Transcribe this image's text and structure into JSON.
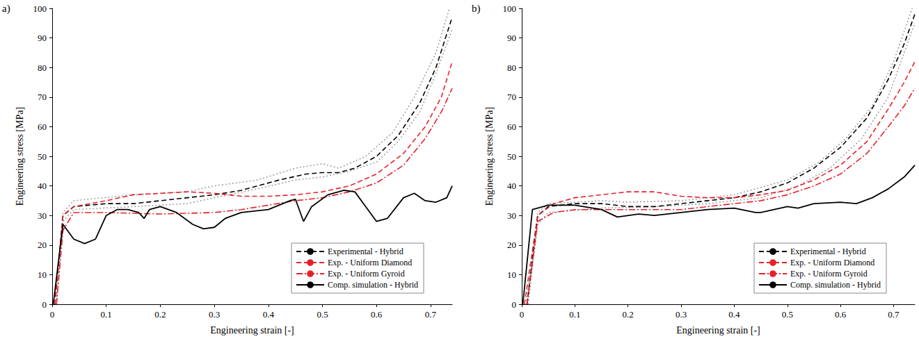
{
  "chart_data": [
    {
      "type": "line",
      "title": "a)",
      "x_label": "Engineering strain [-]",
      "y_label": "Engineering stress [MPa]",
      "xlim": [
        0,
        0.74
      ],
      "xticks": [
        0,
        0.1,
        0.2,
        0.3,
        0.4,
        0.5,
        0.6,
        0.7
      ],
      "ylim": [
        0,
        100
      ],
      "yticks": [
        0,
        10,
        20,
        30,
        40,
        50,
        60,
        70,
        80,
        90,
        100
      ],
      "grid": false,
      "legend": "lower right",
      "series": [
        {
          "color": "#a0a0a0",
          "line_style": "dotted",
          "x": [
            0.005,
            0.02,
            0.04,
            0.15,
            0.25,
            0.3,
            0.38,
            0.45,
            0.5,
            0.53,
            0.58,
            0.63,
            0.67,
            0.71,
            0.735
          ],
          "values": [
            0,
            31,
            35,
            37,
            38,
            40,
            42,
            46,
            47.5,
            46,
            50,
            58,
            70,
            85,
            100
          ]
        },
        {
          "color": "#a0a0a0",
          "line_style": "dotted",
          "x": [
            0.008,
            0.02,
            0.04,
            0.15,
            0.25,
            0.3,
            0.38,
            0.45,
            0.5,
            0.55,
            0.6,
            0.64,
            0.68,
            0.71,
            0.74
          ],
          "values": [
            0,
            28,
            32,
            33,
            34,
            36,
            39,
            42,
            43,
            45,
            48,
            55,
            65,
            78,
            93
          ]
        },
        {
          "name": "Experimental - Hybrid",
          "color": "#000000",
          "line_style": "dashed",
          "x": [
            0.005,
            0.02,
            0.04,
            0.1,
            0.15,
            0.2,
            0.25,
            0.3,
            0.35,
            0.38,
            0.42,
            0.47,
            0.5,
            0.53,
            0.56,
            0.6,
            0.64,
            0.68,
            0.71,
            0.74
          ],
          "values": [
            0,
            30,
            33,
            34,
            34,
            35,
            36,
            37,
            38.5,
            40,
            42,
            44,
            44.5,
            44.5,
            46,
            50,
            57,
            68,
            80,
            97
          ]
        },
        {
          "name": "Exp. - Uniform Diamond",
          "color": "#e8202a",
          "line_style": "dashed",
          "x": [
            0.005,
            0.02,
            0.04,
            0.1,
            0.15,
            0.2,
            0.25,
            0.3,
            0.35,
            0.4,
            0.45,
            0.5,
            0.55,
            0.6,
            0.65,
            0.69,
            0.72,
            0.74
          ],
          "values": [
            0,
            30,
            33,
            35,
            37,
            37.5,
            38,
            37.5,
            36.5,
            36.5,
            37,
            38,
            40,
            44,
            51,
            60,
            70,
            82
          ]
        },
        {
          "name": "Exp. - Uniform Gyroid",
          "color": "#e8202a",
          "line_style": "dashdot",
          "x": [
            0.008,
            0.02,
            0.04,
            0.1,
            0.2,
            0.3,
            0.35,
            0.4,
            0.45,
            0.5,
            0.55,
            0.6,
            0.65,
            0.69,
            0.72,
            0.74
          ],
          "values": [
            0,
            25,
            31,
            31,
            30.5,
            31,
            32,
            33.5,
            35,
            36,
            38,
            41,
            47,
            56,
            65,
            73
          ]
        },
        {
          "name": "Comp. simulation - Hybrid",
          "color": "#000000",
          "line_style": "solid",
          "x": [
            0.002,
            0.02,
            0.04,
            0.06,
            0.08,
            0.1,
            0.12,
            0.14,
            0.16,
            0.17,
            0.18,
            0.2,
            0.23,
            0.26,
            0.28,
            0.3,
            0.32,
            0.35,
            0.4,
            0.44,
            0.45,
            0.465,
            0.48,
            0.51,
            0.54,
            0.56,
            0.58,
            0.6,
            0.62,
            0.65,
            0.67,
            0.69,
            0.71,
            0.73,
            0.74
          ],
          "values": [
            0,
            27,
            22,
            20.5,
            22,
            30,
            32,
            32,
            31,
            29,
            32,
            33,
            31,
            27,
            25.5,
            26,
            29,
            31,
            32,
            35,
            35.5,
            28,
            33,
            37,
            38.5,
            38,
            33,
            28,
            29,
            36,
            37.5,
            35,
            34.5,
            36,
            40
          ]
        }
      ]
    },
    {
      "type": "line",
      "title": "b)",
      "x_label": "Engineering strain [-]",
      "y_label": "Engineering stress [MPa]",
      "xlim": [
        0,
        0.74
      ],
      "xticks": [
        0,
        0.1,
        0.2,
        0.3,
        0.4,
        0.5,
        0.6,
        0.7
      ],
      "ylim": [
        0,
        100
      ],
      "yticks": [
        0,
        10,
        20,
        30,
        40,
        50,
        60,
        70,
        80,
        90,
        100
      ],
      "grid": false,
      "legend": "lower right",
      "series": [
        {
          "color": "#a0a0a0",
          "line_style": "dotted",
          "x": [
            0.008,
            0.03,
            0.05,
            0.15,
            0.2,
            0.3,
            0.4,
            0.5,
            0.56,
            0.61,
            0.66,
            0.7,
            0.735
          ],
          "values": [
            0,
            31,
            34,
            35,
            34.5,
            35,
            37,
            42,
            48,
            56,
            67,
            82,
            100
          ]
        },
        {
          "color": "#a0a0a0",
          "line_style": "dotted",
          "x": [
            0.012,
            0.03,
            0.05,
            0.15,
            0.25,
            0.35,
            0.45,
            0.52,
            0.58,
            0.64,
            0.69,
            0.72,
            0.74
          ],
          "values": [
            0,
            27,
            31,
            32.5,
            33,
            34,
            36,
            40,
            46,
            56,
            70,
            85,
            95
          ]
        },
        {
          "name": "Experimental - Hybrid",
          "color": "#000000",
          "line_style": "dashed",
          "x": [
            0.01,
            0.03,
            0.05,
            0.1,
            0.15,
            0.2,
            0.25,
            0.3,
            0.35,
            0.4,
            0.45,
            0.5,
            0.55,
            0.6,
            0.65,
            0.69,
            0.72,
            0.74
          ],
          "values": [
            0,
            30,
            33,
            34,
            34,
            33,
            33,
            34,
            35,
            36,
            38,
            41,
            46,
            53,
            63,
            76,
            88,
            98
          ]
        },
        {
          "name": "Exp. - Uniform Diamond",
          "color": "#e8202a",
          "line_style": "dashed",
          "x": [
            0.005,
            0.03,
            0.06,
            0.1,
            0.15,
            0.2,
            0.25,
            0.3,
            0.35,
            0.4,
            0.45,
            0.5,
            0.55,
            0.6,
            0.65,
            0.69,
            0.72,
            0.74
          ],
          "values": [
            0,
            30,
            34,
            36,
            37,
            38,
            38,
            36.5,
            36,
            36,
            37,
            38.5,
            42,
            47,
            55,
            66,
            75,
            82
          ]
        },
        {
          "name": "Exp. - Uniform Gyroid",
          "color": "#e8202a",
          "line_style": "dashdot",
          "x": [
            0.01,
            0.03,
            0.06,
            0.1,
            0.2,
            0.3,
            0.35,
            0.4,
            0.45,
            0.5,
            0.55,
            0.6,
            0.65,
            0.69,
            0.72,
            0.74
          ],
          "values": [
            0,
            28,
            31,
            32,
            32,
            32,
            33,
            34,
            35,
            37,
            40,
            44,
            51,
            60,
            67,
            73
          ]
        },
        {
          "name": "Comp. simulation - Hybrid",
          "color": "#000000",
          "line_style": "solid",
          "x": [
            0.002,
            0.02,
            0.05,
            0.1,
            0.15,
            0.18,
            0.22,
            0.25,
            0.3,
            0.35,
            0.4,
            0.44,
            0.45,
            0.5,
            0.52,
            0.55,
            0.6,
            0.63,
            0.66,
            0.69,
            0.72,
            0.74
          ],
          "values": [
            0,
            32,
            33.5,
            33.5,
            32,
            29.5,
            30.5,
            30,
            31,
            32,
            32.5,
            31,
            31,
            33,
            32.5,
            34,
            34.5,
            34,
            36,
            39,
            43,
            47
          ]
        }
      ]
    }
  ]
}
